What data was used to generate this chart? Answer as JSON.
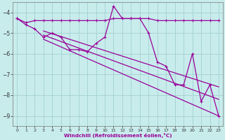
{
  "xlabel": "Windchill (Refroidissement éolien,°C)",
  "background_color": "#c8ecec",
  "grid_color": "#a8d4d4",
  "line_color": "#990099",
  "xlim": [
    -0.5,
    23.5
  ],
  "ylim": [
    -9.5,
    -3.5
  ],
  "xticks": [
    0,
    1,
    2,
    3,
    4,
    5,
    6,
    7,
    8,
    9,
    10,
    11,
    12,
    13,
    14,
    15,
    16,
    17,
    18,
    19,
    20,
    21,
    22,
    23
  ],
  "yticks": [
    -9,
    -8,
    -7,
    -6,
    -5,
    -4
  ],
  "series1_x": [
    0,
    1,
    2,
    3,
    4,
    5,
    6,
    7,
    8,
    9,
    10,
    11,
    12,
    13,
    14,
    15,
    16,
    17,
    18,
    19,
    20,
    21,
    22,
    23
  ],
  "series1_y": [
    -4.3,
    -4.5,
    -4.4,
    -4.4,
    -4.4,
    -4.4,
    -4.4,
    -4.4,
    -4.4,
    -4.4,
    -4.4,
    -4.3,
    -4.3,
    -4.3,
    -4.3,
    -4.3,
    -4.4,
    -4.4,
    -4.4,
    -4.4,
    -4.4,
    -4.4,
    -4.4,
    -4.4
  ],
  "series2_x": [
    0,
    1,
    2,
    3,
    4,
    5,
    6,
    7,
    8,
    9,
    10,
    11,
    12,
    13,
    14,
    15,
    16,
    17,
    18,
    19,
    20,
    21,
    22,
    23
  ],
  "series2_y": [
    -4.3,
    -4.6,
    -4.8,
    -5.2,
    -5.0,
    -5.2,
    -5.8,
    -5.8,
    -5.9,
    -5.5,
    -5.2,
    -3.7,
    -4.3,
    -4.3,
    -4.3,
    -5.0,
    -6.4,
    -6.6,
    -7.5,
    -7.5,
    -6.0,
    -8.3,
    -7.5,
    -9.0
  ],
  "trendlines": [
    {
      "x": [
        3,
        23
      ],
      "y": [
        -4.9,
        -7.6
      ]
    },
    {
      "x": [
        3,
        23
      ],
      "y": [
        -5.1,
        -8.2
      ]
    },
    {
      "x": [
        3,
        23
      ],
      "y": [
        -5.3,
        -9.0
      ]
    }
  ]
}
